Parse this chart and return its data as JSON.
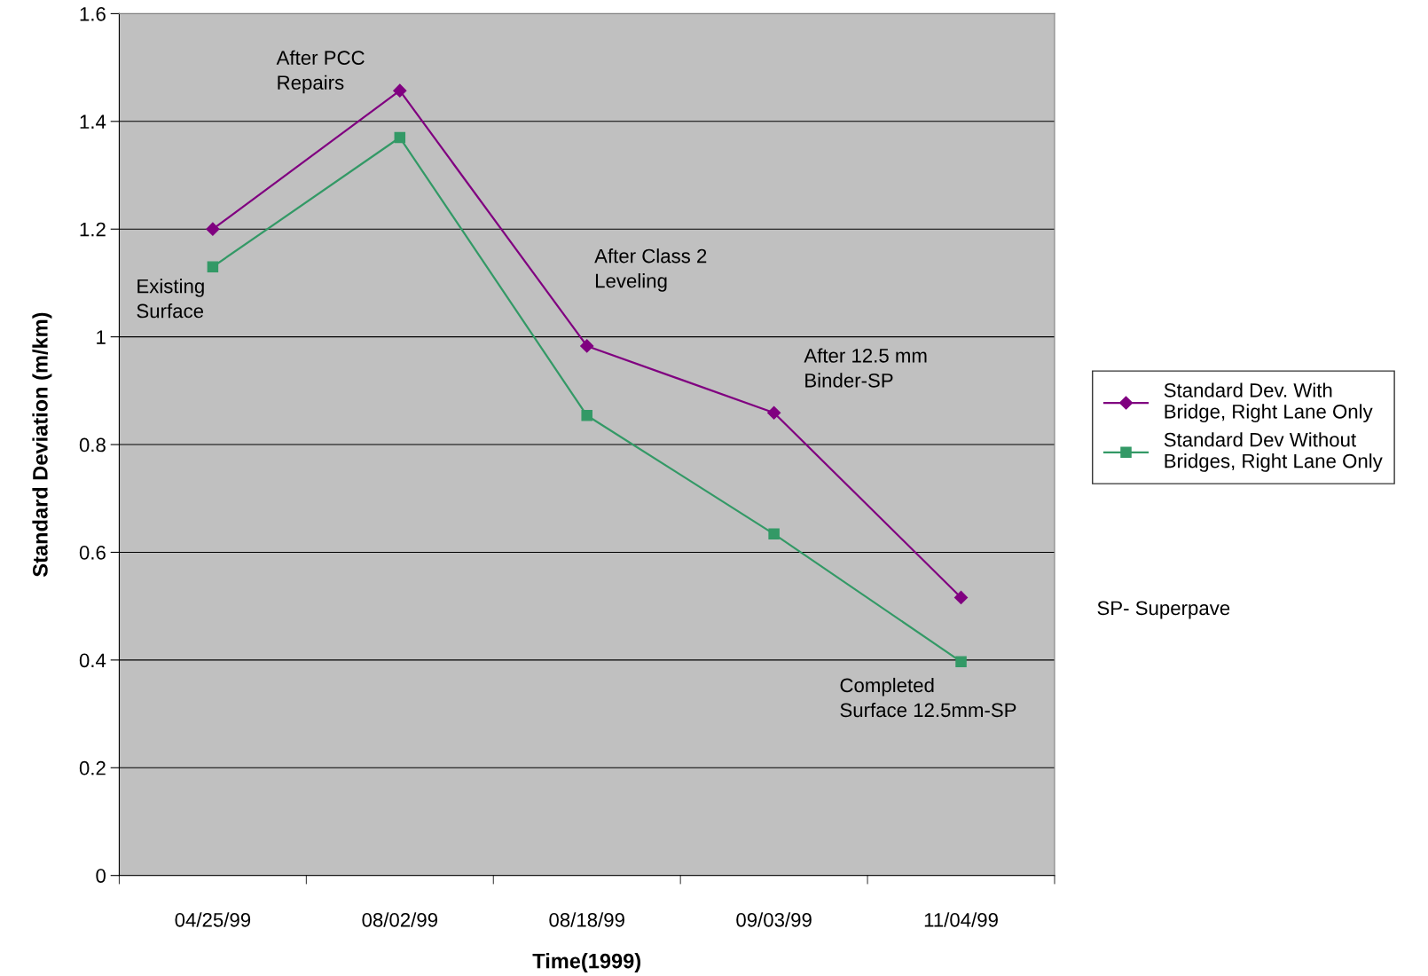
{
  "chart_data": {
    "type": "line",
    "xlabel": "Time(1999)",
    "ylabel": "Standard Deviation (m/km)",
    "categories": [
      "04/25/99",
      "08/02/99",
      "08/18/99",
      "09/03/99",
      "11/04/99"
    ],
    "series": [
      {
        "name": "Standard Dev. With Bridge, Right Lane Only",
        "color": "#800080",
        "marker": "diamond",
        "values": [
          1.2,
          1.457,
          0.983,
          0.859,
          0.516
        ]
      },
      {
        "name": "Standard Dev Without Bridges, Right Lane Only",
        "color": "#339966",
        "marker": "square",
        "values": [
          1.13,
          1.37,
          0.854,
          0.634,
          0.397
        ]
      }
    ],
    "ylim": [
      0,
      1.6
    ],
    "yticks": [
      0,
      0.2,
      0.4,
      0.6,
      0.8,
      1,
      1.2,
      1.4,
      1.6
    ],
    "grid": "y",
    "legend": "right",
    "line_style": "solid",
    "annotations": [
      {
        "text": "Existing\nSurface",
        "x": "04/25/99",
        "y": 1.13
      },
      {
        "text": "After PCC\nRepairs",
        "x": "08/02/99",
        "y": 1.457
      },
      {
        "text": "After Class 2\nLeveling",
        "x": "08/18/99",
        "y": 0.983
      },
      {
        "text": "After 12.5 mm\nBinder-SP",
        "x": "09/03/99",
        "y": 0.859
      },
      {
        "text": "Completed\nSurface 12.5mm-SP",
        "x": "11/04/99",
        "y": 0.397
      },
      "SP- Superpave"
    ]
  }
}
